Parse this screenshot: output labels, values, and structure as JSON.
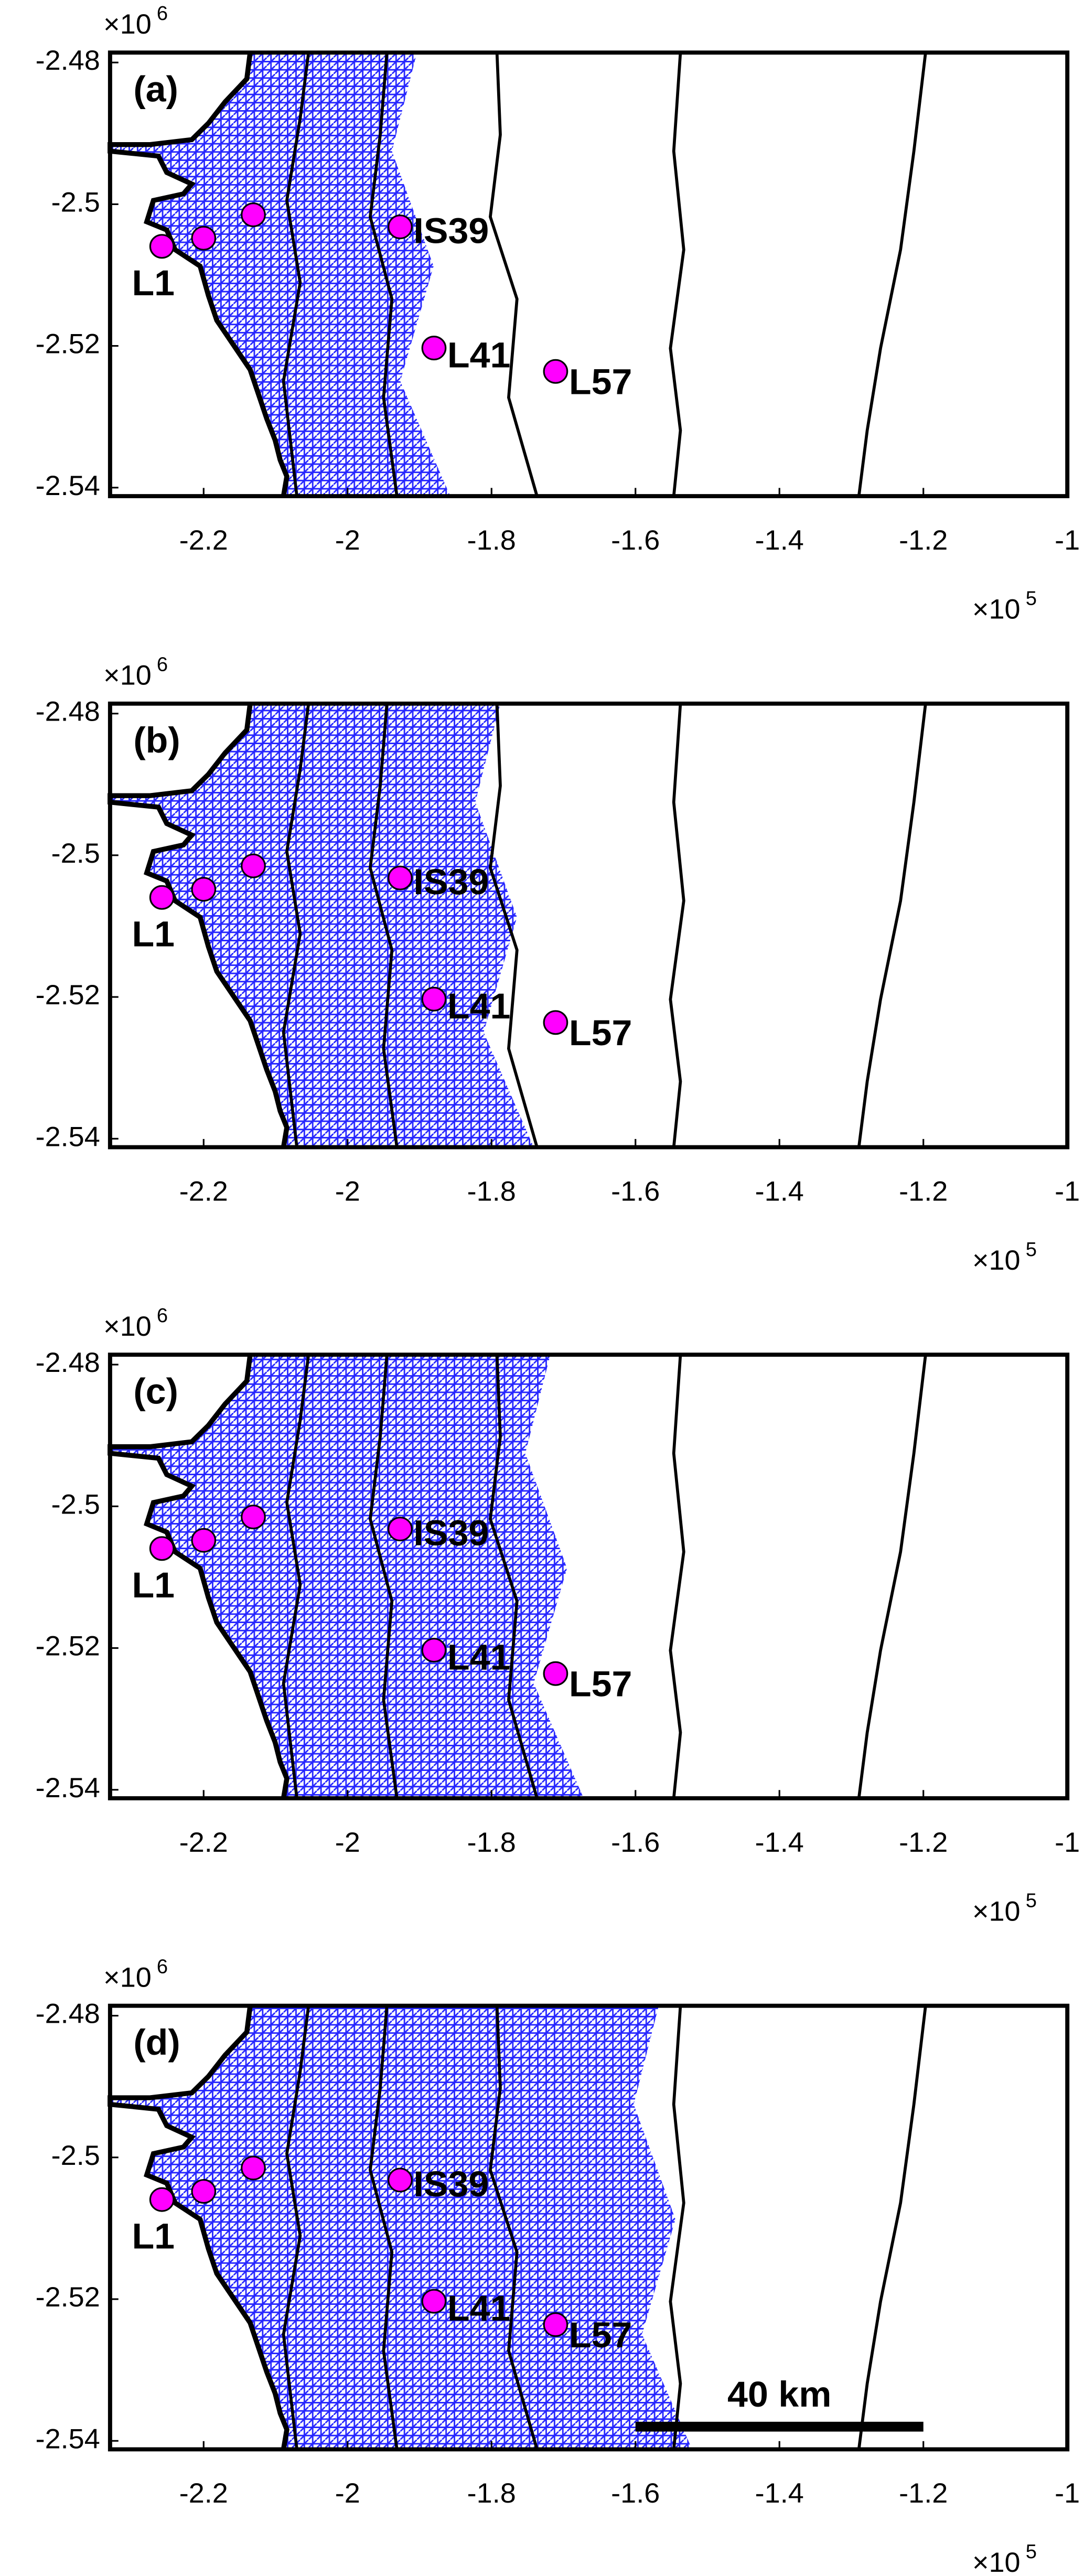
{
  "chart_data": [
    {
      "type": "scatter",
      "title": "(a)",
      "xlim": [
        -233000,
        -100000
      ],
      "ylim": [
        -2541200,
        -2478600
      ],
      "xticks": [
        {
          "value": -220000,
          "label": "-2.2"
        },
        {
          "value": -200000,
          "label": "-2"
        },
        {
          "value": -180000,
          "label": "-1.8"
        },
        {
          "value": -160000,
          "label": "-1.6"
        },
        {
          "value": -140000,
          "label": "-1.4"
        },
        {
          "value": -120000,
          "label": "-1.2"
        },
        {
          "value": -100000,
          "label": "-1"
        }
      ],
      "yticks": [
        {
          "value": -2480000,
          "label": "-2.48"
        },
        {
          "value": -2500000,
          "label": "-2.5"
        },
        {
          "value": -2520000,
          "label": "-2.52"
        },
        {
          "value": -2540000,
          "label": "-2.54"
        }
      ],
      "x_offset": {
        "text": "×10",
        "exponent": 5
      },
      "y_offset": {
        "text": "×10",
        "exponent": 6
      },
      "points": {
        "color": "#ff00ff",
        "x": [
          -225800,
          -220000,
          -213100,
          -192700,
          -188000,
          -171100
        ],
        "y": [
          -2505950,
          -2504800,
          -2501500,
          -2503200,
          -2520300,
          -2523600
        ],
        "labels": [
          "L1",
          null,
          null,
          "IS39",
          "L41",
          "L57"
        ]
      }
    },
    {
      "type": "scatter",
      "title": "(b)",
      "xlim": [
        -233000,
        -100000
      ],
      "ylim": [
        -2541200,
        -2478600
      ],
      "xticks": [
        {
          "value": -220000,
          "label": "-2.2"
        },
        {
          "value": -200000,
          "label": "-2"
        },
        {
          "value": -180000,
          "label": "-1.8"
        },
        {
          "value": -160000,
          "label": "-1.6"
        },
        {
          "value": -140000,
          "label": "-1.4"
        },
        {
          "value": -120000,
          "label": "-1.2"
        },
        {
          "value": -100000,
          "label": "-1"
        }
      ],
      "yticks": [
        {
          "value": -2480000,
          "label": "-2.48"
        },
        {
          "value": -2500000,
          "label": "-2.5"
        },
        {
          "value": -2520000,
          "label": "-2.52"
        },
        {
          "value": -2540000,
          "label": "-2.54"
        }
      ],
      "x_offset": {
        "text": "×10",
        "exponent": 5
      },
      "y_offset": {
        "text": "×10",
        "exponent": 6
      },
      "points": {
        "color": "#ff00ff",
        "x": [
          -225800,
          -220000,
          -213100,
          -192700,
          -188000,
          -171100
        ],
        "y": [
          -2505950,
          -2504800,
          -2501500,
          -2503200,
          -2520300,
          -2523600
        ],
        "labels": [
          "L1",
          null,
          null,
          "IS39",
          "L41",
          "L57"
        ]
      }
    },
    {
      "type": "scatter",
      "title": "(c)",
      "xlim": [
        -233000,
        -100000
      ],
      "ylim": [
        -2541200,
        -2478600
      ],
      "xticks": [
        {
          "value": -220000,
          "label": "-2.2"
        },
        {
          "value": -200000,
          "label": "-2"
        },
        {
          "value": -180000,
          "label": "-1.8"
        },
        {
          "value": -160000,
          "label": "-1.6"
        },
        {
          "value": -140000,
          "label": "-1.4"
        },
        {
          "value": -120000,
          "label": "-1.2"
        },
        {
          "value": -100000,
          "label": "-1"
        }
      ],
      "yticks": [
        {
          "value": -2480000,
          "label": "-2.48"
        },
        {
          "value": -2500000,
          "label": "-2.5"
        },
        {
          "value": -2520000,
          "label": "-2.52"
        },
        {
          "value": -2540000,
          "label": "-2.54"
        }
      ],
      "x_offset": {
        "text": "×10",
        "exponent": 5
      },
      "y_offset": {
        "text": "×10",
        "exponent": 6
      },
      "points": {
        "color": "#ff00ff",
        "x": [
          -225800,
          -220000,
          -213100,
          -192700,
          -188000,
          -171100
        ],
        "y": [
          -2505950,
          -2504800,
          -2501500,
          -2503200,
          -2520300,
          -2523600
        ],
        "labels": [
          "L1",
          null,
          null,
          "IS39",
          "L41",
          "L57"
        ]
      }
    },
    {
      "type": "scatter",
      "title": "(d)",
      "xlim": [
        -233000,
        -100000
      ],
      "ylim": [
        -2541200,
        -2478600
      ],
      "xticks": [
        {
          "value": -220000,
          "label": "-2.2"
        },
        {
          "value": -200000,
          "label": "-2"
        },
        {
          "value": -180000,
          "label": "-1.8"
        },
        {
          "value": -160000,
          "label": "-1.6"
        },
        {
          "value": -140000,
          "label": "-1.4"
        },
        {
          "value": -120000,
          "label": "-1.2"
        },
        {
          "value": -100000,
          "label": "-1"
        }
      ],
      "yticks": [
        {
          "value": -2480000,
          "label": "-2.48"
        },
        {
          "value": -2500000,
          "label": "-2.5"
        },
        {
          "value": -2520000,
          "label": "-2.52"
        },
        {
          "value": -2540000,
          "label": "-2.54"
        }
      ],
      "x_offset": {
        "text": "×10",
        "exponent": 5
      },
      "y_offset": {
        "text": "×10",
        "exponent": 6
      },
      "points": {
        "color": "#ff00ff",
        "x": [
          -225800,
          -220000,
          -213100,
          -192700,
          -188000,
          -171100
        ],
        "y": [
          -2505950,
          -2504800,
          -2501500,
          -2503200,
          -2520300,
          -2523600
        ],
        "labels": [
          "L1",
          null,
          null,
          "IS39",
          "L41",
          "L57"
        ]
      },
      "scale_bar": {
        "label": "40 km",
        "x": [
          -160000,
          -120000
        ],
        "y": -2538000
      }
    }
  ]
}
